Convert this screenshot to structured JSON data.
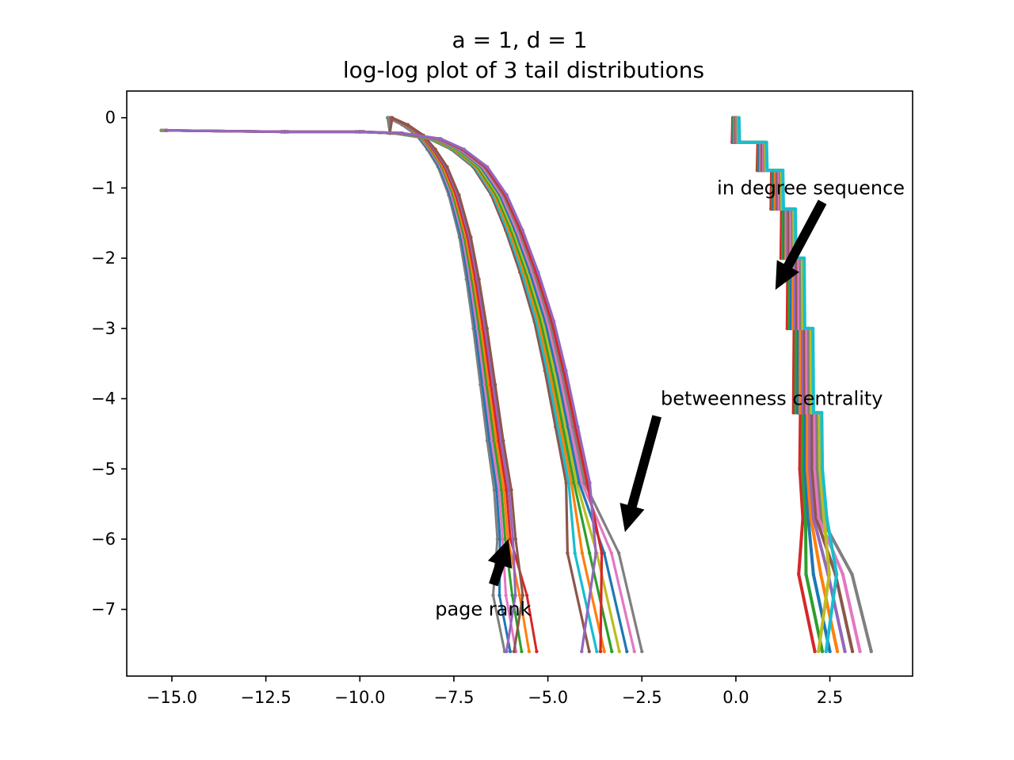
{
  "chart_data": {
    "type": "line",
    "title": "a = 1, d = 1",
    "subtitle": "log-log plot of 3 tail distributions",
    "xlabel": "",
    "ylabel": "",
    "xlim": [
      -16.2,
      4.7
    ],
    "ylim": [
      -7.95,
      0.38
    ],
    "xticks": [
      -15.0,
      -12.5,
      -10.0,
      -7.5,
      -5.0,
      -2.5,
      0.0,
      2.5
    ],
    "xtick_labels": [
      "−15.0",
      "−12.5",
      "−10.0",
      "−7.5",
      "−5.0",
      "−2.5",
      "0.0",
      "2.5"
    ],
    "yticks": [
      0,
      -1,
      -2,
      -3,
      -4,
      -5,
      -6,
      -7
    ],
    "ytick_labels": [
      "0",
      "−1",
      "−2",
      "−3",
      "−4",
      "−5",
      "−6",
      "−7"
    ],
    "grid": false,
    "legend": "none",
    "annotations": [
      {
        "text": "in degree sequence",
        "text_at": [
          -0.5,
          -1.0
        ],
        "arrow_from": [
          2.3,
          -1.2
        ],
        "arrow_to": [
          1.05,
          -2.45
        ]
      },
      {
        "text": "betweenness centrality",
        "text_at": [
          -2.0,
          -4.0
        ],
        "arrow_from": [
          -2.1,
          -4.25
        ],
        "arrow_to": [
          -2.95,
          -5.9
        ]
      },
      {
        "text": "page rank",
        "text_at": [
          -8.0,
          -7.0
        ],
        "arrow_from": [
          -6.45,
          -6.65
        ],
        "arrow_to": [
          -6.05,
          -6.0
        ]
      }
    ],
    "groups": [
      {
        "id": "page-rank",
        "colors": [
          "#7f7f7f",
          "#1f77b4",
          "#e377c2",
          "#2ca02c",
          "#ff7f0e",
          "#d62728",
          "#9467bd",
          "#8c564b"
        ],
        "x": [
          -9.2,
          -8.8,
          -8.4,
          -8.1,
          -7.8,
          -7.5,
          -7.2,
          -7.0,
          -6.8,
          -6.6,
          -6.4,
          -6.2,
          -6.1,
          -6.0,
          -5.9
        ],
        "y": [
          0.0,
          -0.1,
          -0.25,
          -0.45,
          -0.7,
          -1.1,
          -1.7,
          -2.3,
          -3.0,
          -3.8,
          -4.6,
          -5.3,
          -6.0,
          -6.8,
          -7.6
        ],
        "lead_x": [
          -15.2,
          -12.0,
          -10.0,
          -9.2
        ],
        "lead_y": [
          -0.18,
          -0.2,
          -0.2,
          -0.22
        ],
        "tail_x_ends": [
          -6.15,
          -6.0,
          -5.85,
          -5.7,
          -5.5,
          -5.3,
          -6.1,
          -5.9
        ]
      },
      {
        "id": "betweenness-centrality",
        "colors": [
          "#8c564b",
          "#17becf",
          "#ff7f0e",
          "#2ca02c",
          "#bcbd22",
          "#1f77b4",
          "#e377c2",
          "#7f7f7f",
          "#d62728",
          "#9467bd"
        ],
        "x": [
          -15.2,
          -12.0,
          -10.0,
          -9.0,
          -8.0,
          -7.4,
          -6.8,
          -6.3,
          -5.9,
          -5.5,
          -5.1,
          -4.8,
          -4.5,
          -4.2,
          -4.0,
          -3.8
        ],
        "y": [
          -0.18,
          -0.2,
          -0.2,
          -0.22,
          -0.3,
          -0.45,
          -0.7,
          -1.1,
          -1.6,
          -2.2,
          -2.9,
          -3.6,
          -4.4,
          -5.2,
          -6.2,
          -7.6
        ],
        "tail_x_ends": [
          -3.9,
          -3.7,
          -3.5,
          -3.3,
          -3.1,
          -2.9,
          -2.7,
          -2.5,
          -3.6,
          -4.1
        ]
      },
      {
        "id": "in-degree-sequence",
        "colors": [
          "#d62728",
          "#2ca02c",
          "#1f77b4",
          "#ff7f0e",
          "#9467bd",
          "#8c564b",
          "#e377c2",
          "#7f7f7f",
          "#bcbd22",
          "#17becf"
        ],
        "x": [
          0.0,
          0.0,
          0.7,
          0.7,
          1.1,
          1.1,
          1.4,
          1.4,
          1.6,
          1.6,
          1.8,
          1.8,
          2.0,
          2.0,
          2.1,
          2.2,
          2.3
        ],
        "y": [
          0.0,
          -0.35,
          -0.35,
          -0.75,
          -0.75,
          -1.3,
          -1.3,
          -2.0,
          -2.0,
          -3.0,
          -3.0,
          -4.2,
          -4.2,
          -5.0,
          -5.7,
          -6.5,
          -7.6
        ],
        "tail_x_ends": [
          2.1,
          2.3,
          2.5,
          2.7,
          2.9,
          3.1,
          3.3,
          3.6,
          2.2,
          2.4
        ]
      }
    ]
  }
}
